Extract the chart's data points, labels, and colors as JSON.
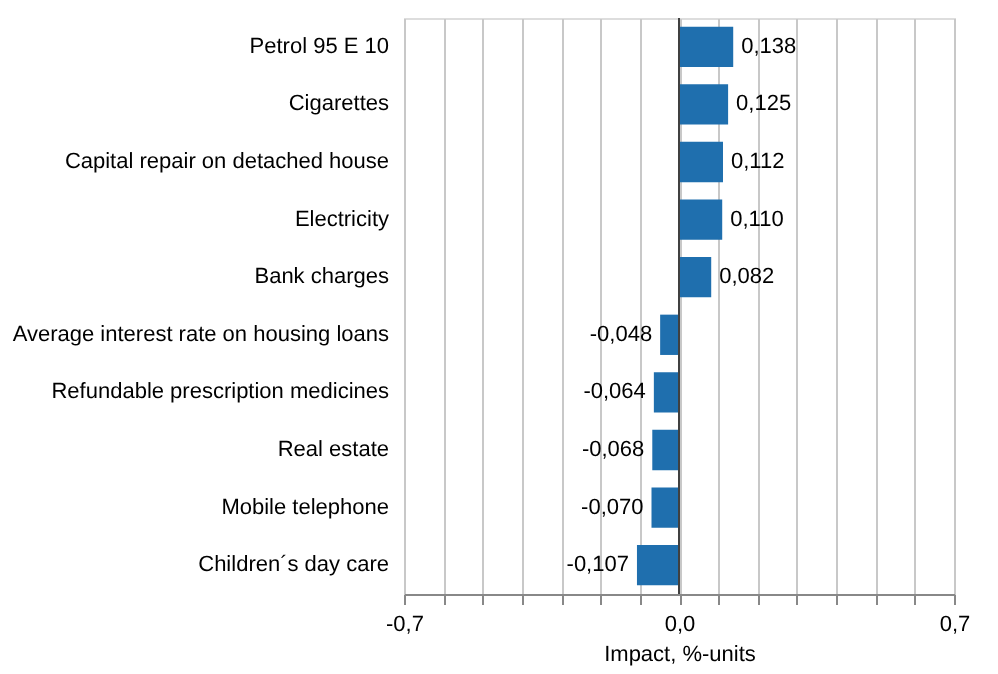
{
  "chart_data": {
    "type": "bar",
    "orientation": "horizontal",
    "xlabel": "Impact, %-units",
    "categories": [
      "Petrol 95 E 10",
      "Cigarettes",
      "Capital repair on detached house",
      "Electricity",
      "Bank charges",
      "Average interest rate on housing loans",
      "Refundable prescription medicines",
      "Real estate",
      "Mobile telephone",
      "Children´s day care"
    ],
    "values": [
      0.138,
      0.125,
      0.112,
      0.11,
      0.082,
      -0.048,
      -0.064,
      -0.068,
      -0.07,
      -0.107
    ],
    "value_labels": [
      "0,138",
      "0,125",
      "0,112",
      "0,110",
      "0,082",
      "-0,048",
      "-0,064",
      "-0,068",
      "-0,070",
      "-0,107"
    ],
    "color": "#1f6fae",
    "xlim": [
      -0.7,
      0.7
    ],
    "xticks": [
      {
        "value": -0.7,
        "label": "-0,7"
      },
      {
        "value": -0.6,
        "label": null
      },
      {
        "value": -0.5,
        "label": null
      },
      {
        "value": -0.4,
        "label": null
      },
      {
        "value": -0.3,
        "label": null
      },
      {
        "value": -0.2,
        "label": null
      },
      {
        "value": -0.1,
        "label": null
      },
      {
        "value": 0,
        "label": "0,0"
      },
      {
        "value": 0.1,
        "label": null
      },
      {
        "value": 0.2,
        "label": null
      },
      {
        "value": 0.3,
        "label": null
      },
      {
        "value": 0.4,
        "label": null
      },
      {
        "value": 0.5,
        "label": null
      },
      {
        "value": 0.6,
        "label": null
      },
      {
        "value": 0.7,
        "label": "0,7"
      }
    ],
    "grid": "x",
    "ref_lines": [
      {
        "axis": "x",
        "value": 0,
        "color": "#404040"
      }
    ]
  }
}
